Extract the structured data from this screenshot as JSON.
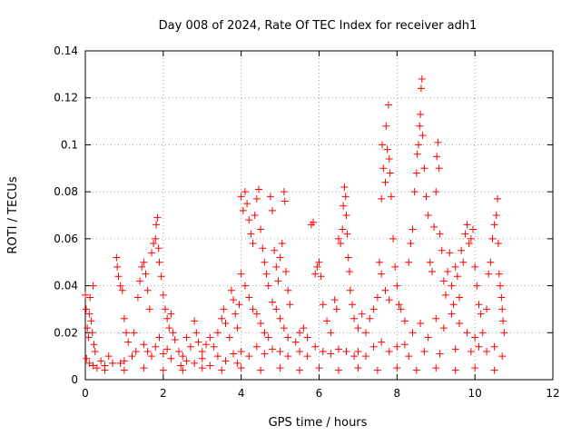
{
  "chart_data": {
    "type": "scatter",
    "title": "Day 008 of 2024, Rate Of TEC Index for receiver adh1",
    "xlabel": "GPS time / hours",
    "ylabel": "ROTI / TECUs",
    "xlim": [
      0,
      12
    ],
    "ylim": [
      0,
      0.14
    ],
    "x_ticks": [
      0,
      2,
      4,
      6,
      8,
      10,
      12
    ],
    "x_tick_labels": [
      "0",
      "2",
      "4",
      "6",
      "8",
      "10",
      "12"
    ],
    "y_ticks": [
      0,
      0.02,
      0.04,
      0.06,
      0.08,
      0.1,
      0.12,
      0.14
    ],
    "y_tick_labels": [
      "0",
      "0.02",
      "0.04",
      "0.06",
      "0.08",
      "0.1",
      "0.12",
      "0.14"
    ],
    "grid": true,
    "marker": "+",
    "marker_color": "#ff0000",
    "series": [
      {
        "name": "ROTI",
        "points": [
          [
            0.0,
            0.036
          ],
          [
            0.02,
            0.03
          ],
          [
            0.05,
            0.022
          ],
          [
            0.08,
            0.018
          ],
          [
            0.1,
            0.028
          ],
          [
            0.12,
            0.035
          ],
          [
            0.15,
            0.025
          ],
          [
            0.18,
            0.02
          ],
          [
            0.2,
            0.04
          ],
          [
            0.22,
            0.015
          ],
          [
            0.25,
            0.012
          ],
          [
            0.03,
            0.009
          ],
          [
            0.1,
            0.007
          ],
          [
            0.2,
            0.006
          ],
          [
            0.3,
            0.005
          ],
          [
            0.4,
            0.008
          ],
          [
            0.5,
            0.006
          ],
          [
            0.6,
            0.01
          ],
          [
            0.7,
            0.007
          ],
          [
            0.8,
            0.052
          ],
          [
            0.82,
            0.048
          ],
          [
            0.85,
            0.044
          ],
          [
            0.9,
            0.04
          ],
          [
            0.95,
            0.038
          ],
          [
            1.0,
            0.026
          ],
          [
            1.05,
            0.02
          ],
          [
            1.1,
            0.016
          ],
          [
            0.9,
            0.007
          ],
          [
            1.0,
            0.008
          ],
          [
            1.2,
            0.01
          ],
          [
            1.3,
            0.012
          ],
          [
            1.35,
            0.035
          ],
          [
            1.4,
            0.042
          ],
          [
            1.45,
            0.048
          ],
          [
            1.5,
            0.05
          ],
          [
            1.55,
            0.045
          ],
          [
            1.6,
            0.038
          ],
          [
            1.65,
            0.03
          ],
          [
            1.7,
            0.054
          ],
          [
            1.75,
            0.058
          ],
          [
            1.8,
            0.06
          ],
          [
            1.82,
            0.066
          ],
          [
            1.85,
            0.069
          ],
          [
            1.88,
            0.056
          ],
          [
            1.9,
            0.05
          ],
          [
            1.95,
            0.044
          ],
          [
            2.0,
            0.036
          ],
          [
            2.05,
            0.03
          ],
          [
            2.1,
            0.026
          ],
          [
            2.15,
            0.022
          ],
          [
            2.2,
            0.028
          ],
          [
            2.25,
            0.02
          ],
          [
            2.3,
            0.017
          ],
          [
            1.25,
            0.02
          ],
          [
            1.5,
            0.015
          ],
          [
            1.6,
            0.012
          ],
          [
            1.7,
            0.01
          ],
          [
            1.8,
            0.014
          ],
          [
            1.9,
            0.018
          ],
          [
            2.0,
            0.011
          ],
          [
            2.1,
            0.013
          ],
          [
            2.2,
            0.009
          ],
          [
            2.4,
            0.012
          ],
          [
            2.5,
            0.01
          ],
          [
            2.6,
            0.018
          ],
          [
            2.7,
            0.014
          ],
          [
            2.8,
            0.025
          ],
          [
            2.85,
            0.02
          ],
          [
            2.9,
            0.016
          ],
          [
            3.0,
            0.012
          ],
          [
            3.1,
            0.015
          ],
          [
            3.2,
            0.018
          ],
          [
            3.3,
            0.014
          ],
          [
            3.4,
            0.02
          ],
          [
            3.5,
            0.026
          ],
          [
            3.55,
            0.03
          ],
          [
            3.6,
            0.024
          ],
          [
            3.7,
            0.018
          ],
          [
            3.75,
            0.038
          ],
          [
            3.8,
            0.034
          ],
          [
            3.85,
            0.028
          ],
          [
            3.9,
            0.022
          ],
          [
            3.95,
            0.032
          ],
          [
            2.45,
            0.006
          ],
          [
            2.6,
            0.008
          ],
          [
            2.8,
            0.007
          ],
          [
            3.0,
            0.009
          ],
          [
            3.2,
            0.006
          ],
          [
            3.4,
            0.01
          ],
          [
            3.6,
            0.008
          ],
          [
            3.8,
            0.011
          ],
          [
            3.9,
            0.007
          ],
          [
            4.0,
            0.078
          ],
          [
            4.05,
            0.072
          ],
          [
            4.1,
            0.08
          ],
          [
            4.15,
            0.075
          ],
          [
            4.2,
            0.068
          ],
          [
            4.25,
            0.062
          ],
          [
            4.3,
            0.058
          ],
          [
            4.35,
            0.07
          ],
          [
            4.4,
            0.077
          ],
          [
            4.45,
            0.081
          ],
          [
            4.5,
            0.064
          ],
          [
            4.55,
            0.056
          ],
          [
            4.6,
            0.05
          ],
          [
            4.65,
            0.045
          ],
          [
            4.7,
            0.04
          ],
          [
            4.75,
            0.078
          ],
          [
            4.8,
            0.072
          ],
          [
            4.85,
            0.055
          ],
          [
            4.9,
            0.048
          ],
          [
            4.95,
            0.042
          ],
          [
            5.0,
            0.052
          ],
          [
            5.05,
            0.058
          ],
          [
            5.1,
            0.08
          ],
          [
            5.12,
            0.076
          ],
          [
            5.15,
            0.046
          ],
          [
            5.2,
            0.038
          ],
          [
            5.25,
            0.032
          ],
          [
            4.0,
            0.045
          ],
          [
            4.1,
            0.04
          ],
          [
            4.2,
            0.035
          ],
          [
            4.3,
            0.03
          ],
          [
            4.4,
            0.028
          ],
          [
            4.5,
            0.024
          ],
          [
            4.6,
            0.02
          ],
          [
            4.7,
            0.018
          ],
          [
            4.8,
            0.033
          ],
          [
            4.9,
            0.03
          ],
          [
            5.0,
            0.026
          ],
          [
            5.1,
            0.022
          ],
          [
            5.2,
            0.018
          ],
          [
            4.0,
            0.012
          ],
          [
            4.2,
            0.01
          ],
          [
            4.4,
            0.014
          ],
          [
            4.6,
            0.011
          ],
          [
            4.8,
            0.013
          ],
          [
            5.0,
            0.012
          ],
          [
            5.2,
            0.01
          ],
          [
            5.4,
            0.016
          ],
          [
            5.5,
            0.02
          ],
          [
            5.6,
            0.022
          ],
          [
            5.7,
            0.018
          ],
          [
            5.8,
            0.066
          ],
          [
            5.85,
            0.067
          ],
          [
            5.9,
            0.045
          ],
          [
            5.95,
            0.048
          ],
          [
            6.0,
            0.05
          ],
          [
            6.05,
            0.044
          ],
          [
            6.1,
            0.032
          ],
          [
            6.2,
            0.025
          ],
          [
            6.3,
            0.02
          ],
          [
            6.4,
            0.034
          ],
          [
            6.45,
            0.03
          ],
          [
            6.5,
            0.06
          ],
          [
            6.55,
            0.058
          ],
          [
            6.6,
            0.064
          ],
          [
            6.62,
            0.074
          ],
          [
            6.65,
            0.082
          ],
          [
            6.68,
            0.078
          ],
          [
            6.7,
            0.07
          ],
          [
            6.72,
            0.062
          ],
          [
            6.75,
            0.052
          ],
          [
            6.78,
            0.046
          ],
          [
            6.8,
            0.038
          ],
          [
            6.85,
            0.032
          ],
          [
            6.9,
            0.026
          ],
          [
            5.5,
            0.012
          ],
          [
            5.7,
            0.01
          ],
          [
            5.9,
            0.014
          ],
          [
            6.1,
            0.012
          ],
          [
            6.3,
            0.011
          ],
          [
            6.5,
            0.013
          ],
          [
            6.7,
            0.012
          ],
          [
            6.9,
            0.01
          ],
          [
            7.0,
            0.022
          ],
          [
            7.1,
            0.028
          ],
          [
            7.2,
            0.02
          ],
          [
            7.3,
            0.026
          ],
          [
            7.4,
            0.03
          ],
          [
            7.5,
            0.035
          ],
          [
            7.55,
            0.05
          ],
          [
            7.6,
            0.077
          ],
          [
            7.62,
            0.1
          ],
          [
            7.65,
            0.09
          ],
          [
            7.7,
            0.084
          ],
          [
            7.72,
            0.108
          ],
          [
            7.75,
            0.098
          ],
          [
            7.78,
            0.117
          ],
          [
            7.8,
            0.094
          ],
          [
            7.82,
            0.088
          ],
          [
            7.85,
            0.078
          ],
          [
            7.9,
            0.06
          ],
          [
            7.95,
            0.048
          ],
          [
            8.0,
            0.04
          ],
          [
            8.05,
            0.032
          ],
          [
            7.6,
            0.045
          ],
          [
            7.7,
            0.038
          ],
          [
            7.8,
            0.034
          ],
          [
            7.0,
            0.012
          ],
          [
            7.2,
            0.01
          ],
          [
            7.4,
            0.014
          ],
          [
            7.6,
            0.016
          ],
          [
            7.8,
            0.012
          ],
          [
            8.0,
            0.014
          ],
          [
            8.1,
            0.03
          ],
          [
            8.2,
            0.025
          ],
          [
            8.3,
            0.05
          ],
          [
            8.35,
            0.058
          ],
          [
            8.4,
            0.064
          ],
          [
            8.45,
            0.08
          ],
          [
            8.5,
            0.088
          ],
          [
            8.52,
            0.096
          ],
          [
            8.55,
            0.1
          ],
          [
            8.58,
            0.108
          ],
          [
            8.6,
            0.113
          ],
          [
            8.62,
            0.124
          ],
          [
            8.64,
            0.128
          ],
          [
            8.66,
            0.104
          ],
          [
            8.7,
            0.09
          ],
          [
            8.75,
            0.078
          ],
          [
            8.8,
            0.07
          ],
          [
            8.85,
            0.05
          ],
          [
            8.9,
            0.046
          ],
          [
            8.95,
            0.065
          ],
          [
            9.0,
            0.08
          ],
          [
            9.02,
            0.095
          ],
          [
            9.05,
            0.101
          ],
          [
            9.08,
            0.09
          ],
          [
            9.1,
            0.062
          ],
          [
            9.15,
            0.055
          ],
          [
            9.2,
            0.042
          ],
          [
            9.25,
            0.036
          ],
          [
            9.3,
            0.046
          ],
          [
            9.35,
            0.054
          ],
          [
            9.4,
            0.04
          ],
          [
            9.45,
            0.032
          ],
          [
            9.5,
            0.048
          ],
          [
            9.55,
            0.044
          ],
          [
            9.6,
            0.035
          ],
          [
            9.65,
            0.055
          ],
          [
            9.7,
            0.05
          ],
          [
            9.75,
            0.062
          ],
          [
            9.8,
            0.066
          ],
          [
            9.85,
            0.058
          ],
          [
            9.9,
            0.06
          ],
          [
            9.95,
            0.064
          ],
          [
            10.0,
            0.048
          ],
          [
            10.05,
            0.04
          ],
          [
            10.1,
            0.032
          ],
          [
            10.15,
            0.028
          ],
          [
            8.2,
            0.015
          ],
          [
            8.4,
            0.02
          ],
          [
            8.6,
            0.024
          ],
          [
            8.8,
            0.018
          ],
          [
            9.0,
            0.026
          ],
          [
            9.2,
            0.022
          ],
          [
            9.4,
            0.028
          ],
          [
            9.6,
            0.024
          ],
          [
            9.8,
            0.02
          ],
          [
            10.0,
            0.018
          ],
          [
            10.1,
            0.014
          ],
          [
            8.3,
            0.01
          ],
          [
            8.7,
            0.012
          ],
          [
            9.1,
            0.011
          ],
          [
            9.5,
            0.013
          ],
          [
            9.9,
            0.012
          ],
          [
            10.2,
            0.02
          ],
          [
            10.3,
            0.03
          ],
          [
            10.35,
            0.045
          ],
          [
            10.4,
            0.05
          ],
          [
            10.45,
            0.06
          ],
          [
            10.5,
            0.066
          ],
          [
            10.55,
            0.07
          ],
          [
            10.58,
            0.077
          ],
          [
            10.6,
            0.058
          ],
          [
            10.62,
            0.045
          ],
          [
            10.65,
            0.04
          ],
          [
            10.68,
            0.035
          ],
          [
            10.7,
            0.03
          ],
          [
            10.72,
            0.025
          ],
          [
            10.75,
            0.02
          ],
          [
            10.3,
            0.012
          ],
          [
            10.5,
            0.014
          ],
          [
            10.7,
            0.01
          ],
          [
            0.5,
            0.004
          ],
          [
            1.0,
            0.004
          ],
          [
            1.5,
            0.005
          ],
          [
            2.0,
            0.004
          ],
          [
            2.5,
            0.004
          ],
          [
            3.0,
            0.005
          ],
          [
            3.5,
            0.004
          ],
          [
            4.0,
            0.005
          ],
          [
            4.5,
            0.004
          ],
          [
            5.0,
            0.005
          ],
          [
            5.5,
            0.004
          ],
          [
            6.0,
            0.005
          ],
          [
            6.5,
            0.004
          ],
          [
            7.0,
            0.005
          ],
          [
            7.5,
            0.004
          ],
          [
            8.0,
            0.005
          ],
          [
            8.5,
            0.004
          ],
          [
            9.0,
            0.005
          ],
          [
            9.5,
            0.004
          ],
          [
            10.0,
            0.005
          ],
          [
            10.5,
            0.004
          ]
        ]
      }
    ]
  }
}
